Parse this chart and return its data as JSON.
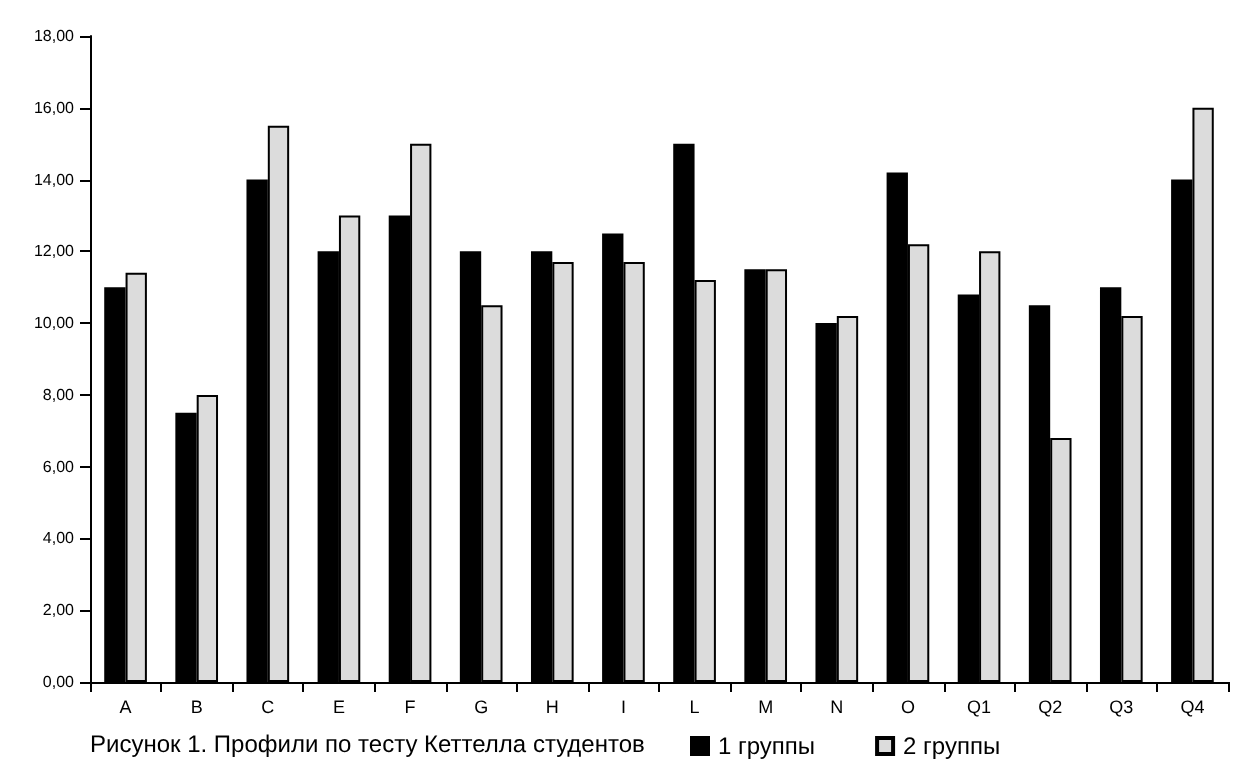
{
  "chart_data": {
    "type": "bar",
    "title": "Рисунок 1. Профили по тесту Кеттелла студентов",
    "categories": [
      "A",
      "B",
      "C",
      "E",
      "F",
      "G",
      "H",
      "I",
      "L",
      "M",
      "N",
      "O",
      "Q1",
      "Q2",
      "Q3",
      "Q4"
    ],
    "series": [
      {
        "name": "1 группы",
        "color": "#000000",
        "values": [
          11.0,
          7.5,
          14.0,
          12.0,
          13.0,
          12.0,
          12.0,
          12.5,
          15.0,
          11.5,
          10.0,
          14.2,
          10.8,
          10.5,
          11.0,
          14.0
        ]
      },
      {
        "name": "2 группы",
        "color": "#dcdcdc",
        "values": [
          11.4,
          8.0,
          15.5,
          13.0,
          15.0,
          10.5,
          11.7,
          11.7,
          11.2,
          11.5,
          10.2,
          12.2,
          12.0,
          6.8,
          10.2,
          16.0
        ]
      }
    ],
    "ylim": [
      0,
      18
    ],
    "yticks": [
      {
        "value": 0,
        "label": "0,00"
      },
      {
        "value": 2,
        "label": "2,00"
      },
      {
        "value": 4,
        "label": "4,00"
      },
      {
        "value": 6,
        "label": "6,00"
      },
      {
        "value": 8,
        "label": "8,00"
      },
      {
        "value": 10,
        "label": "10,00"
      },
      {
        "value": 12,
        "label": "12,00"
      },
      {
        "value": 14,
        "label": "14,00"
      },
      {
        "value": 16,
        "label": "16,00"
      },
      {
        "value": 18,
        "label": "18,00"
      }
    ],
    "grid": false,
    "legend": "bottom"
  }
}
